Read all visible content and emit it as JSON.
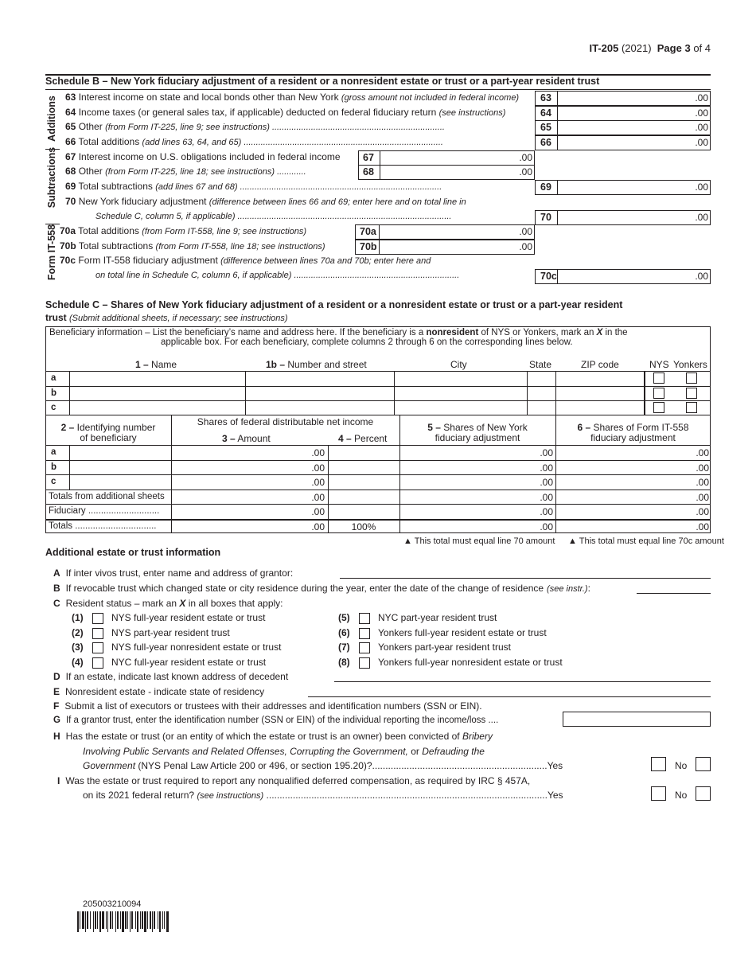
{
  "header": {
    "form": "IT-205",
    "year": "(2021)",
    "page": "Page 3",
    "of": "of 4"
  },
  "schedule_b": {
    "title": "Schedule B – New York fiduciary adjustment of a resident or a nonresident estate or trust or a part-year resident trust",
    "side_labels": {
      "additions": "Additions",
      "subtractions": "Subtractions",
      "it558": "Form IT-558"
    },
    "lines": [
      {
        "no": "63",
        "text": "Interest income on state and local bonds other than New York",
        "note": "(gross amount not included in federal income)",
        "box": "63",
        "value": ".00"
      },
      {
        "no": "64",
        "text": "Income taxes (or general sales tax, if applicable) deducted on federal fiduciary return",
        "note": "(see instructions)",
        "box": "64",
        "value": ".00"
      },
      {
        "no": "65",
        "text": "Other",
        "note": "(from Form IT-225, line 9; see instructions) .......................................................................",
        "box": "65",
        "value": ".00"
      },
      {
        "no": "66",
        "text": "Total additions",
        "note": "(add lines 63, 64, and 65) ..................................................................................",
        "box": "66",
        "value": ".00"
      },
      {
        "no": "67",
        "text": "Interest income on U.S. obligations included in federal income",
        "note": "",
        "box": "67",
        "value": ".00"
      },
      {
        "no": "68",
        "text": "Other",
        "note": "(from Form IT-225, line 18; see instructions) ............",
        "box": "68",
        "value": ".00"
      },
      {
        "no": "69",
        "text": "Total subtractions",
        "note": "(add lines 67 and 68) ...................................................................................",
        "box": "69",
        "value": ".00"
      },
      {
        "no": "70",
        "text": "New York fiduciary adjustment",
        "note": "(difference between lines 66 and 69; enter here and on total line in",
        "note2": "Schedule C, column 5, if applicable) ........................................................................................",
        "box": "70",
        "value": ".00"
      },
      {
        "no": "70a",
        "text": "Total additions",
        "note": "(from Form IT-558, line 9; see instructions)",
        "box": "70a",
        "value": ".00"
      },
      {
        "no": "70b",
        "text": "Total subtractions",
        "note": "(from Form IT-558, line 18; see instructions)",
        "box": "70b",
        "value": ".00"
      },
      {
        "no": "70c",
        "text": "Form IT-558 fiduciary adjustment",
        "note": "(difference between lines 70a and 70b; enter here and",
        "note2": "on total line in Schedule C, column 6, if applicable) ....................................................................",
        "box": "70c",
        "value": ".00"
      }
    ]
  },
  "schedule_c": {
    "title": "Schedule C – Shares of New York fiduciary adjustment of a resident or a nonresident estate or trust or a part-year resident",
    "title2": "trust",
    "subtitle": "(Submit additional sheets, if necessary; see instructions)",
    "info1": "Beneficiary information – List the beneficiary’s name and address here. If the beneficiary is a ",
    "info_bold": "nonresident",
    "info2": " of NYS or Yonkers, mark an ",
    "info_x": "X",
    "info3": " in the",
    "info_line2": "applicable box. For each beneficiary, complete columns 2 through 6 on the corresponding lines below.",
    "cols1": {
      "name_no": "1 –",
      "name": " Name",
      "street_no": "1b –",
      "street": " Number and street",
      "city": "City",
      "state": "State",
      "zip": "ZIP code",
      "nys": "NYS",
      "yonkers": "Yonkers"
    },
    "row_letters": [
      "a",
      "b",
      "c"
    ],
    "cols2": {
      "id_no": "2 –",
      "id": " Identifying number",
      "id2": "of beneficiary",
      "shares": "Shares of federal distributable net income",
      "amt_no": "3 –",
      "amt": " Amount",
      "pct_no": "4 –",
      "pct": " Percent",
      "c5_no": "5 –",
      "c5": " Shares of New York",
      "c5b": "fiduciary adjustment",
      "c6_no": "6 –",
      "c6": " Shares of Form IT-558",
      "c6b": "fiduciary adjustment"
    },
    "rows2": [
      {
        "label": "a",
        "amount": ".00",
        "percent": "",
        "c5": ".00",
        "c6": ".00"
      },
      {
        "label": "b",
        "amount": ".00",
        "percent": "",
        "c5": ".00",
        "c6": ".00"
      },
      {
        "label": "c",
        "amount": ".00",
        "percent": "",
        "c5": ".00",
        "c6": ".00"
      },
      {
        "label": "Totals from additional sheets",
        "amount": ".00",
        "percent": "",
        "c5": ".00",
        "c6": ".00"
      },
      {
        "label": "Fiduciary ............................",
        "amount": ".00",
        "percent": "",
        "c5": ".00",
        "c6": ".00"
      },
      {
        "label": "Totals ................................",
        "amount": ".00",
        "percent": "100%",
        "c5": ".00",
        "c6": ".00"
      }
    ],
    "note5": "▲ This total must equal line 70 amount",
    "note6": "▲ This total must equal line 70c amount"
  },
  "additional": {
    "title": "Additional estate or trust information",
    "A": {
      "letter": "A",
      "text": "If inter vivos trust, enter name and address of grantor:"
    },
    "B": {
      "letter": "B",
      "text": "If revocable trust which changed state or city residence during the year, enter the date of the change of residence",
      "note": "(see instr.)",
      "colon": ":"
    },
    "C": {
      "letter": "C",
      "text": "Resident status – mark an ",
      "x": "X",
      "text2": " in all boxes that apply:"
    },
    "status": [
      {
        "no": "(1)",
        "label": "NYS full-year resident estate or trust",
        "checked": false
      },
      {
        "no": "(2)",
        "label": "NYS part-year resident trust",
        "checked": false
      },
      {
        "no": "(3)",
        "label": "NYS full-year nonresident estate or trust",
        "checked": false
      },
      {
        "no": "(4)",
        "label": "NYC full-year resident estate or trust",
        "checked": false
      },
      {
        "no": "(5)",
        "label": "NYC part-year resident trust",
        "checked": false
      },
      {
        "no": "(6)",
        "label": "Yonkers full-year resident estate or trust",
        "checked": false
      },
      {
        "no": "(7)",
        "label": "Yonkers part-year resident trust",
        "checked": false
      },
      {
        "no": "(8)",
        "label": "Yonkers full-year nonresident estate or trust",
        "checked": false
      }
    ],
    "D": {
      "letter": "D",
      "text": "If an estate, indicate last known address of decedent"
    },
    "E": {
      "letter": "E",
      "text": "Nonresident estate - indicate state of residency"
    },
    "F": {
      "letter": "F",
      "text": "Submit a list of executors or trustees with their addresses and identification numbers (SSN or EIN)."
    },
    "G": {
      "letter": "G",
      "text": "If a grantor trust, enter the identification number (SSN or EIN) of the individual reporting the income/loss ...."
    },
    "H": {
      "letter": "H",
      "text": "Has the estate or trust (or an entity of which the estate or trust is an owner) been convicted of ",
      "it1": "Bribery",
      "line2": "Involving Public Servants and Related Offenses, Corrupting the Government,",
      "line2b": " or ",
      "line2c": "Defrauding the",
      "line3": "Government",
      "line3b": " (NYS Penal Law Article 200 or 496, or section 195.20)?..................................................................Yes",
      "no": "No"
    },
    "I": {
      "letter": "I",
      "text": "Was the estate or trust required to report any nonqualified deferred compensation, as required by IRC § 457A,",
      "line2": "on its 2021 federal return?",
      "note": "(see instructions)",
      "dots": " ..........................................................................................................Yes",
      "no": "No"
    }
  },
  "barcode": {
    "number": "205003210094"
  }
}
